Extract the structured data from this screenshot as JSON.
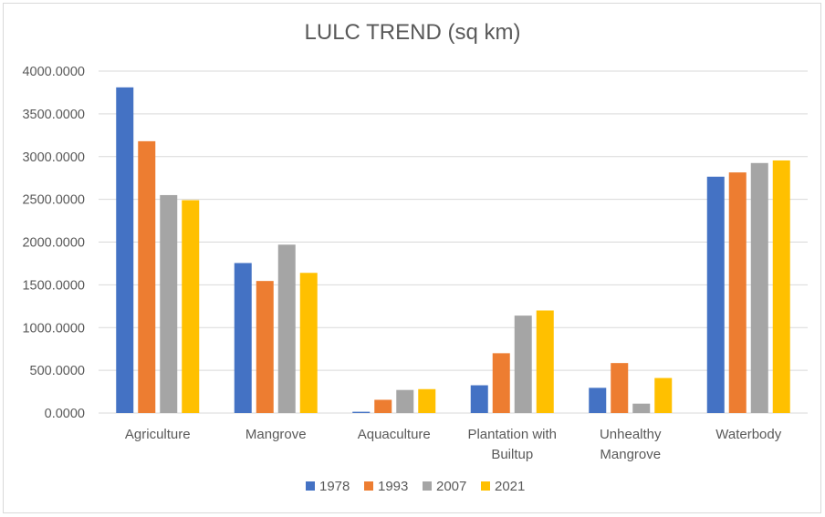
{
  "chart_data": {
    "type": "bar",
    "title": "LULC TREND (sq km)",
    "xlabel": "",
    "ylabel": "",
    "categories": [
      [
        "Agriculture"
      ],
      [
        "Mangrove"
      ],
      [
        "Aquaculture"
      ],
      [
        "Plantation with",
        "Builtup"
      ],
      [
        "Unhealthy",
        "Mangrove"
      ],
      [
        "Waterbody"
      ]
    ],
    "y_ticks": [
      "0.0000",
      "500.0000",
      "1000.0000",
      "1500.0000",
      "2000.0000",
      "2500.0000",
      "3000.0000",
      "3500.0000",
      "4000.0000"
    ],
    "ylim": [
      0,
      4000
    ],
    "grid": true,
    "legend_position": "bottom",
    "series": [
      {
        "name": "1978",
        "color": "#4472C4",
        "values": [
          3810,
          1755,
          15,
          325,
          295,
          2765
        ]
      },
      {
        "name": "1993",
        "color": "#ED7D31",
        "values": [
          3180,
          1545,
          155,
          700,
          585,
          2815
        ]
      },
      {
        "name": "2007",
        "color": "#A5A5A5",
        "values": [
          2550,
          1970,
          270,
          1140,
          110,
          2925
        ]
      },
      {
        "name": "2021",
        "color": "#FFC000",
        "values": [
          2490,
          1640,
          280,
          1200,
          410,
          2955
        ]
      }
    ]
  }
}
